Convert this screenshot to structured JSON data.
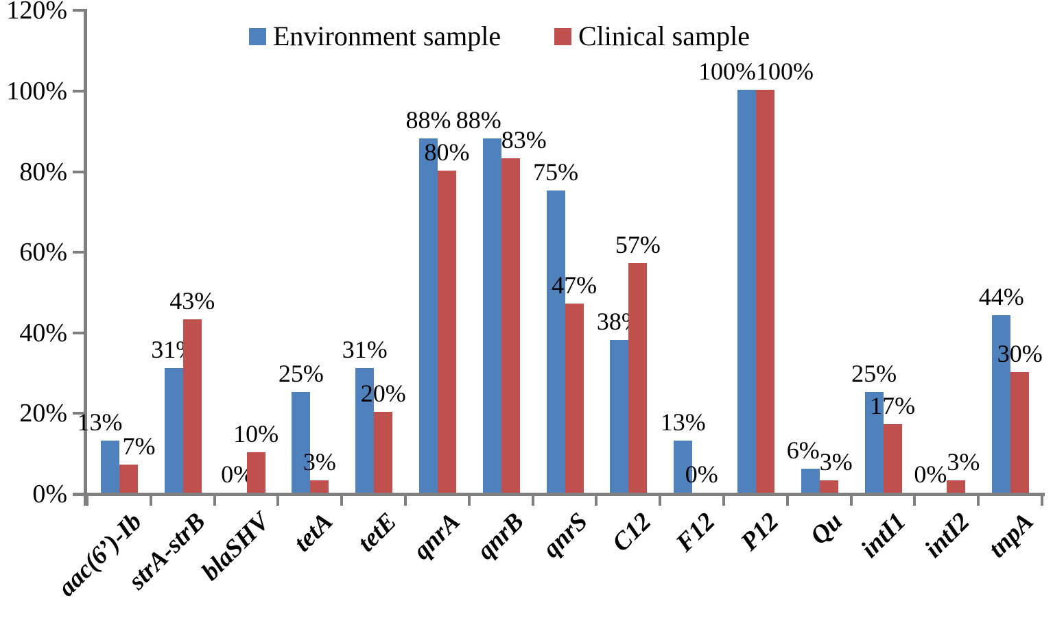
{
  "chart_data": {
    "type": "bar",
    "title": "",
    "xlabel": "",
    "ylabel": "",
    "categories": [
      "aac(6’)-Ib",
      "strA-strB",
      "blaSHV",
      "tetA",
      "tetE",
      "qnrA",
      "qnrB",
      "qnrS",
      "C12",
      "F12",
      "P12",
      "Qu",
      "intI1",
      "intI2",
      "tnpA"
    ],
    "series": [
      {
        "name": "Environment sample",
        "color": "#4F81BD",
        "values": [
          13,
          31,
          0,
          25,
          31,
          88,
          88,
          75,
          38,
          13,
          100,
          6,
          25,
          0,
          44
        ],
        "labels": [
          "13%",
          "31%",
          "0%",
          "25%",
          "31%",
          "88%",
          "88%",
          "75%",
          "38%",
          "13%",
          "100%",
          "6%",
          "25%",
          "0%",
          "44%"
        ]
      },
      {
        "name": "Clinical sample",
        "color": "#C0504D",
        "values": [
          7,
          43,
          10,
          3,
          20,
          80,
          83,
          47,
          57,
          0,
          100,
          3,
          17,
          3,
          30
        ],
        "labels": [
          "7%",
          "43%",
          "10%",
          "3%",
          "20%",
          "80%",
          "83%",
          "47%",
          "57%",
          "0%",
          "100%",
          "3%",
          "17%",
          "3%",
          "30%"
        ]
      }
    ],
    "ylim": [
      0,
      120
    ],
    "ytick_labels": [
      "0%",
      "20%",
      "40%",
      "60%",
      "80%",
      "100%",
      "120%"
    ],
    "grid": false,
    "legend_position": "top-center",
    "axis_color": "#7F7F7F",
    "text_color": "#000000",
    "background_color": "#FFFFFF"
  }
}
